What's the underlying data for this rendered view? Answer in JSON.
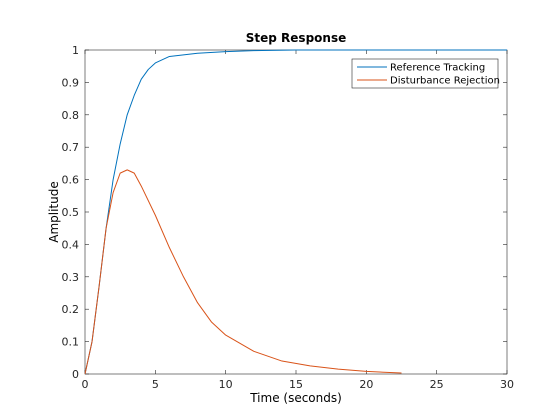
{
  "chart_data": {
    "type": "line",
    "title": "Step Response",
    "xlabel": "Time (seconds)",
    "ylabel": "Amplitude",
    "xlim": [
      0,
      30
    ],
    "ylim": [
      0,
      1
    ],
    "xticks": [
      0,
      5,
      10,
      15,
      20,
      25,
      30
    ],
    "yticks": [
      0,
      0.1,
      0.2,
      0.3,
      0.4,
      0.5,
      0.6,
      0.7,
      0.8,
      0.9,
      1
    ],
    "grid": false,
    "legend_position": "top-right",
    "series": [
      {
        "name": "Reference Tracking",
        "color": "#0072bd",
        "x": [
          0,
          0.5,
          1,
          1.5,
          2,
          2.5,
          3,
          3.5,
          4,
          4.5,
          5,
          6,
          7,
          8,
          10,
          12,
          15,
          20,
          25,
          30
        ],
        "y": [
          0,
          0.1,
          0.27,
          0.45,
          0.6,
          0.71,
          0.8,
          0.86,
          0.91,
          0.94,
          0.96,
          0.98,
          0.985,
          0.99,
          0.995,
          0.998,
          1.0,
          1.0,
          1.0,
          1.0
        ]
      },
      {
        "name": "Disturbance Rejection",
        "color": "#d95319",
        "x": [
          0,
          0.5,
          1,
          1.5,
          2,
          2.5,
          3,
          3.5,
          4,
          5,
          6,
          7,
          8,
          9,
          10,
          12,
          14,
          16,
          18,
          20,
          22.5
        ],
        "y": [
          0,
          0.1,
          0.27,
          0.45,
          0.56,
          0.62,
          0.63,
          0.62,
          0.58,
          0.49,
          0.39,
          0.3,
          0.22,
          0.16,
          0.12,
          0.07,
          0.04,
          0.025,
          0.015,
          0.008,
          0.003
        ]
      }
    ]
  }
}
